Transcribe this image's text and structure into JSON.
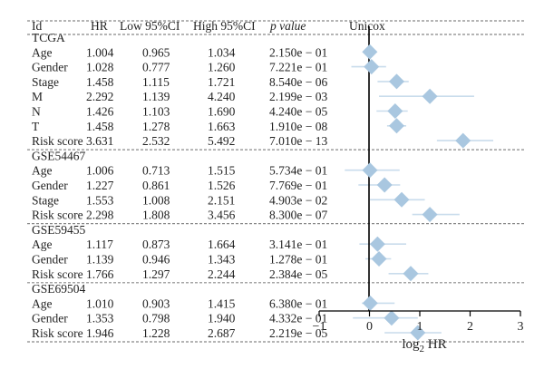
{
  "chart_data": {
    "type": "forest",
    "columns": [
      "Id",
      "HR",
      "Low 95%CI",
      "High 95%CI",
      "p value",
      "Unicox"
    ],
    "x_label": "log2 HR",
    "x_label_base": "log",
    "x_label_sub": "2",
    "x_label_tail": " HR",
    "x_ticks": [
      -1,
      0,
      1,
      2,
      3
    ],
    "x_tick_labels": [
      "−1",
      "0",
      "1",
      "2",
      "3"
    ],
    "xlim": [
      -1,
      3
    ],
    "marker_color": "#a9c7e0",
    "ci_color": "#c9dcec",
    "groups": [
      {
        "name": "TCGA",
        "rows": [
          {
            "id": "Age",
            "hr": "1.004",
            "low": "0.965",
            "high": "1.034",
            "p": "2.150e − 01",
            "log2hr": 0.006,
            "log2low": -0.05,
            "log2high": 0.05
          },
          {
            "id": "Gender",
            "hr": "1.028",
            "low": "0.777",
            "high": "1.260",
            "p": "7.221e − 01",
            "log2hr": 0.04,
            "log2low": -0.36,
            "log2high": 0.33
          },
          {
            "id": "Stage",
            "hr": "1.458",
            "low": "1.115",
            "high": "1.721",
            "p": "8.540e − 06",
            "log2hr": 0.54,
            "log2low": 0.16,
            "log2high": 0.78
          },
          {
            "id": "M",
            "hr": "2.292",
            "low": "1.139",
            "high": "4.240",
            "p": "2.199e − 03",
            "log2hr": 1.2,
            "log2low": 0.19,
            "log2high": 2.08
          },
          {
            "id": "N",
            "hr": "1.426",
            "low": "1.103",
            "high": "1.690",
            "p": "4.240e − 05",
            "log2hr": 0.51,
            "log2low": 0.14,
            "log2high": 0.76
          },
          {
            "id": "T",
            "hr": "1.458",
            "low": "1.278",
            "high": "1.663",
            "p": "1.910e − 08",
            "log2hr": 0.54,
            "log2low": 0.35,
            "log2high": 0.73
          },
          {
            "id": "Risk score",
            "hr": "3.631",
            "low": "2.532",
            "high": "5.492",
            "p": "7.010e − 13",
            "log2hr": 1.86,
            "log2low": 1.34,
            "log2high": 2.46
          }
        ]
      },
      {
        "name": "GSE54467",
        "rows": [
          {
            "id": "Age",
            "hr": "1.006",
            "low": "0.713",
            "high": "1.515",
            "p": "5.734e − 01",
            "log2hr": 0.009,
            "log2low": -0.49,
            "log2high": 0.6
          },
          {
            "id": "Gender",
            "hr": "1.227",
            "low": "0.861",
            "high": "1.526",
            "p": "7.769e − 01",
            "log2hr": 0.3,
            "log2low": -0.22,
            "log2high": 0.61
          },
          {
            "id": "Stage",
            "hr": "1.553",
            "low": "1.008",
            "high": "2.151",
            "p": "4.903e − 02",
            "log2hr": 0.64,
            "log2low": 0.01,
            "log2high": 1.1
          },
          {
            "id": "Risk score",
            "hr": "2.298",
            "low": "1.808",
            "high": "3.456",
            "p": "8.300e − 07",
            "log2hr": 1.2,
            "log2low": 0.85,
            "log2high": 1.79
          }
        ]
      },
      {
        "name": "GSE59455",
        "rows": [
          {
            "id": "Age",
            "hr": "1.117",
            "low": "0.873",
            "high": "1.664",
            "p": "3.141e − 01",
            "log2hr": 0.16,
            "log2low": -0.2,
            "log2high": 0.73
          },
          {
            "id": "Gender",
            "hr": "1.139",
            "low": "0.946",
            "high": "1.343",
            "p": "1.278e − 01",
            "log2hr": 0.19,
            "log2low": -0.08,
            "log2high": 0.43
          },
          {
            "id": "Risk score",
            "hr": "1.766",
            "low": "1.297",
            "high": "2.244",
            "p": "2.384e − 05",
            "log2hr": 0.82,
            "log2low": 0.38,
            "log2high": 1.17
          }
        ]
      },
      {
        "name": "GSE69504",
        "rows": [
          {
            "id": "Age",
            "hr": "1.010",
            "low": "0.903",
            "high": "1.415",
            "p": "6.380e − 01",
            "log2hr": 0.014,
            "log2low": -0.15,
            "log2high": 0.5
          },
          {
            "id": "Gender",
            "hr": "1.353",
            "low": "0.798",
            "high": "1.940",
            "p": "4.332e − 01",
            "log2hr": 0.44,
            "log2low": -0.33,
            "log2high": 0.96
          },
          {
            "id": "Risk score",
            "hr": "1.946",
            "low": "1.228",
            "high": "2.687",
            "p": "2.219e − 05",
            "log2hr": 0.96,
            "log2low": 0.3,
            "log2high": 1.43
          }
        ]
      }
    ]
  }
}
